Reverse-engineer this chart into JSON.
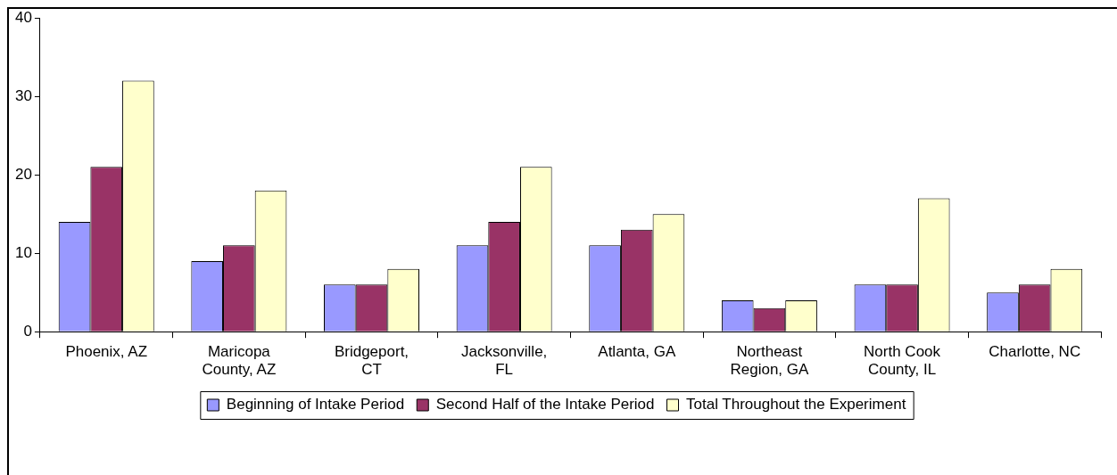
{
  "chart_data": {
    "type": "bar",
    "categories": [
      "Phoenix, AZ",
      "Maricopa County, AZ",
      "Bridgeport, CT",
      "Jacksonville, FL",
      "Atlanta, GA",
      "Northeast Region, GA",
      "North Cook County, IL",
      "Charlotte, NC"
    ],
    "series": [
      {
        "name": "Beginning of Intake Period",
        "color": "#9999ff",
        "values": [
          14,
          9,
          6,
          11,
          11,
          4,
          6,
          5
        ]
      },
      {
        "name": "Second Half of the Intake Period",
        "color": "#993366",
        "values": [
          21,
          11,
          6,
          14,
          13,
          3,
          6,
          6
        ]
      },
      {
        "name": "Total Throughout the Experiment",
        "color": "#ffffcc",
        "values": [
          32,
          18,
          8,
          21,
          15,
          4,
          17,
          8
        ]
      }
    ],
    "ylim": [
      0,
      40
    ],
    "yticks": [
      0,
      10,
      20,
      30,
      40
    ],
    "legend": "bottom"
  }
}
